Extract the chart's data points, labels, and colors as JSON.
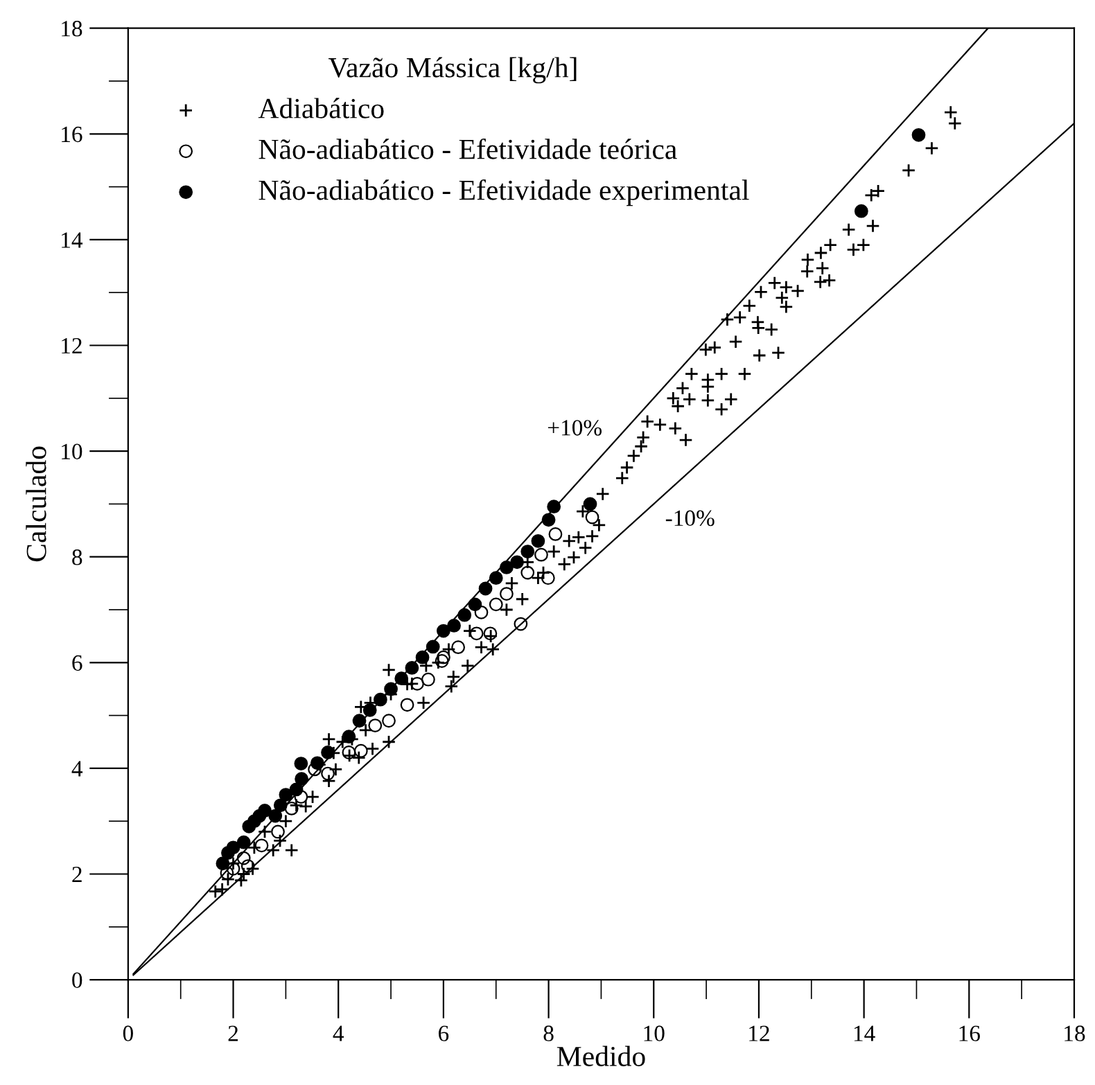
{
  "chart_data": {
    "type": "scatter",
    "xlabel": "Medido",
    "ylabel": "Calculado",
    "legend_title": "Vazão Mássica [kg/h]",
    "legend": "top left",
    "grid": false,
    "xlim": [
      0,
      18
    ],
    "ylim": [
      0,
      18
    ],
    "xticks": [
      0,
      {
        "value": 1,
        "label": null
      },
      2,
      {
        "value": 3,
        "label": null
      },
      4,
      {
        "value": 5,
        "label": null
      },
      6,
      {
        "value": 7,
        "label": null
      },
      8,
      {
        "value": 9,
        "label": null
      },
      10,
      {
        "value": 11,
        "label": null
      },
      12,
      {
        "value": 13,
        "label": null
      },
      14,
      {
        "value": 15,
        "label": null
      },
      16,
      {
        "value": 17,
        "label": null
      },
      18
    ],
    "yticks": [
      0,
      {
        "value": 1,
        "label": null
      },
      2,
      {
        "value": 3,
        "label": null
      },
      4,
      {
        "value": 5,
        "label": null
      },
      6,
      {
        "value": 7,
        "label": null
      },
      8,
      {
        "value": 9,
        "label": null
      },
      10,
      {
        "value": 11,
        "label": null
      },
      12,
      {
        "value": 13,
        "label": null
      },
      14,
      {
        "value": 15,
        "label": null
      },
      16,
      {
        "value": 17,
        "label": null
      },
      18
    ],
    "annotations": [
      "+10%",
      "-10%"
    ],
    "series": [
      {
        "name": "Adiabático",
        "type": "scatter",
        "marker": "cross",
        "color": "#000000",
        "x": [
          13.71,
          14.17,
          13.36,
          13.8,
          13.99,
          12.93,
          13.18,
          13.21,
          12.92,
          13.17,
          13.34,
          12.3,
          12.04,
          12.52,
          12.74,
          12.44,
          11.82,
          12.52,
          11.4,
          11.64,
          11.98,
          11.99,
          12.24,
          11.56,
          12.01,
          12.37,
          10.99,
          11.16,
          10.72,
          11.03,
          11.29,
          11.73,
          11.03,
          10.55,
          10.37,
          10.68,
          11.03,
          11.47,
          11.29,
          10.46,
          9.88,
          10.12,
          10.41,
          10.61,
          9.8,
          9.76,
          9.62,
          9.49,
          9.4,
          9.03,
          8.96,
          8.65,
          8.57,
          8.39,
          8.83,
          8.7,
          8.48,
          8.3,
          15.65,
          15.73,
          15.29,
          14.85,
          14.27,
          14.14,
          1.66,
          1.79,
          2.15,
          2.37,
          2.76,
          2.89,
          3.38,
          3.51,
          3.82,
          3.95,
          3.64,
          3.91,
          4.21,
          4.39,
          4.26,
          4.52,
          4.65,
          4.96,
          4.61,
          4.96,
          5.31,
          5.62,
          6.15,
          6.19,
          6.1,
          6.72,
          6.94,
          6.46,
          5.67,
          4.43,
          3.82,
          4.08,
          3.11,
          6.9,
          7.2,
          7.5,
          7.8,
          7.6,
          7.3,
          6.5,
          5.9,
          5.4,
          5.0,
          7.9,
          8.1,
          2.0,
          2.4,
          2.6,
          3.0,
          3.2,
          1.9,
          2.2
        ],
        "values": [
          14.19,
          14.26,
          13.9,
          13.81,
          13.9,
          13.62,
          13.75,
          13.46,
          13.4,
          13.2,
          13.23,
          13.18,
          13.01,
          13.1,
          13.03,
          12.9,
          12.75,
          12.73,
          12.49,
          12.53,
          12.44,
          12.33,
          12.3,
          12.07,
          11.81,
          11.86,
          11.92,
          11.96,
          11.46,
          11.35,
          11.46,
          11.46,
          11.22,
          11.19,
          11.0,
          10.98,
          10.96,
          10.98,
          10.79,
          10.85,
          10.56,
          10.5,
          10.43,
          10.21,
          10.26,
          10.09,
          9.91,
          9.69,
          9.49,
          9.19,
          8.6,
          8.86,
          8.37,
          8.3,
          8.39,
          8.17,
          7.99,
          7.86,
          16.41,
          16.2,
          15.73,
          15.31,
          14.92,
          14.84,
          1.67,
          1.71,
          1.88,
          2.1,
          2.45,
          2.63,
          3.28,
          3.46,
          3.76,
          3.98,
          4.07,
          4.29,
          4.24,
          4.2,
          4.55,
          4.72,
          4.37,
          4.5,
          5.24,
          5.86,
          5.59,
          5.24,
          5.55,
          5.73,
          6.25,
          6.29,
          6.25,
          5.94,
          5.94,
          5.16,
          4.55,
          4.5,
          2.45,
          6.5,
          7.0,
          7.2,
          7.6,
          7.9,
          7.5,
          6.6,
          6.0,
          5.6,
          5.4,
          7.7,
          8.1,
          2.2,
          2.5,
          2.8,
          3.0,
          3.3,
          1.9,
          2.0
        ]
      },
      {
        "name": "Não-adiabático - Efetividade teórica",
        "type": "scatter",
        "marker": "circle",
        "color": "#000000",
        "x": [
          1.88,
          2.28,
          2.54,
          2.85,
          3.11,
          3.29,
          3.55,
          4.43,
          4.7,
          4.96,
          5.31,
          5.71,
          5.97,
          6.28,
          6.63,
          6.72,
          6.89,
          7.86,
          7.47,
          7.99,
          8.83,
          8.13,
          7.2,
          7.6,
          7.0,
          6.0,
          5.5,
          4.2,
          3.8,
          2.2,
          2.0
        ],
        "values": [
          2.02,
          2.15,
          2.54,
          2.8,
          3.24,
          3.46,
          3.98,
          4.33,
          4.81,
          4.9,
          5.2,
          5.68,
          6.03,
          6.29,
          6.55,
          6.95,
          6.55,
          8.04,
          6.73,
          7.6,
          8.75,
          8.43,
          7.3,
          7.7,
          7.1,
          6.1,
          5.6,
          4.3,
          3.9,
          2.3,
          2.1
        ]
      },
      {
        "name": "Não-adiabático - Efetividade experimental",
        "type": "scatter",
        "marker": "circle",
        "color": "#000000",
        "x": [
          1.8,
          1.9,
          2.0,
          2.2,
          2.3,
          2.4,
          2.5,
          2.6,
          2.8,
          2.9,
          3.0,
          3.2,
          3.3,
          3.29,
          3.6,
          3.8,
          4.2,
          4.4,
          4.6,
          4.8,
          5.0,
          5.2,
          5.4,
          5.6,
          5.8,
          6.0,
          6.2,
          6.4,
          6.6,
          6.8,
          7.0,
          7.2,
          7.4,
          7.6,
          7.8,
          8.0,
          8.1,
          8.79,
          15.04,
          13.95
        ],
        "values": [
          2.2,
          2.4,
          2.5,
          2.6,
          2.9,
          3.0,
          3.1,
          3.2,
          3.1,
          3.3,
          3.5,
          3.6,
          3.8,
          4.09,
          4.1,
          4.3,
          4.6,
          4.9,
          5.1,
          5.3,
          5.5,
          5.7,
          5.9,
          6.1,
          6.3,
          6.6,
          6.7,
          6.9,
          7.1,
          7.4,
          7.6,
          7.8,
          7.9,
          8.1,
          8.3,
          8.7,
          8.95,
          9.0,
          15.98,
          14.54
        ]
      },
      {
        "type": "line",
        "marker": "none",
        "line_style": "solid",
        "color": "#000000",
        "x": [
          0.1,
          16.36
        ],
        "values": [
          0.11,
          18
        ]
      },
      {
        "type": "line",
        "marker": "none",
        "line_style": "solid",
        "color": "#000000",
        "x": [
          0.1,
          18
        ],
        "values": [
          0.09,
          16.2
        ]
      }
    ]
  }
}
